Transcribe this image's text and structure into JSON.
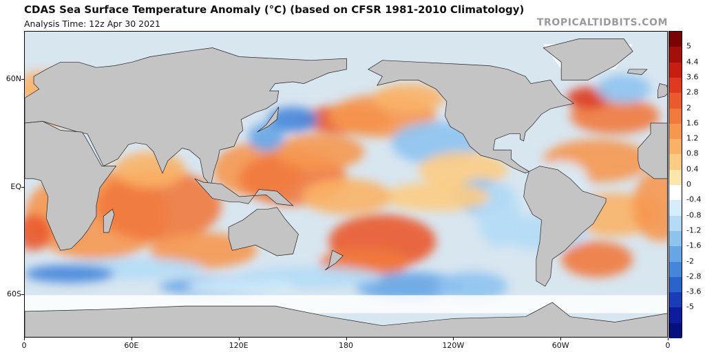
{
  "header": {
    "title": "CDAS Sea Surface Temperature Anomaly (°C) (based on CFSR 1981-2010 Climatology)",
    "subtitle": "Analysis Time: 12z Apr 30 2021",
    "brand": "TROPICALTIDBITS.COM"
  },
  "map": {
    "projection": "equirectangular",
    "lat_labels": [
      {
        "label": "60N",
        "lat": 60
      },
      {
        "label": "EQ",
        "lat": 0
      },
      {
        "label": "60S",
        "lat": -60
      }
    ],
    "lon_labels": [
      {
        "label": "0",
        "lon": 0
      },
      {
        "label": "60E",
        "lon": 60
      },
      {
        "label": "120E",
        "lon": 120
      },
      {
        "label": "180",
        "lon": 180
      },
      {
        "label": "120W",
        "lon": 240
      },
      {
        "label": "60W",
        "lon": 300
      },
      {
        "label": "0",
        "lon": 360
      }
    ],
    "land_color": "#c4c4c4",
    "ice_color": "#ffffff"
  },
  "colorbar": {
    "labels": [
      "5",
      "4.4",
      "3.6",
      "2.8",
      "2",
      "1.6",
      "1.2",
      "0.8",
      "0.4",
      "0",
      "-0.4",
      "-0.8",
      "-1.2",
      "-1.6",
      "-2",
      "-2.8",
      "-3.6",
      "-5"
    ],
    "colors": [
      "#7a0403",
      "#a50f0a",
      "#c81e10",
      "#dd3a1f",
      "#ea5a2e",
      "#f1793d",
      "#f6974f",
      "#f9b266",
      "#fccc83",
      "#fde7aa",
      "#ffffff",
      "#d6eefb",
      "#b4dbf6",
      "#8ec3ef",
      "#67a6e5",
      "#4586da",
      "#2b63cc",
      "#1a3cb8",
      "#0d1c9c",
      "#06107a"
    ]
  }
}
